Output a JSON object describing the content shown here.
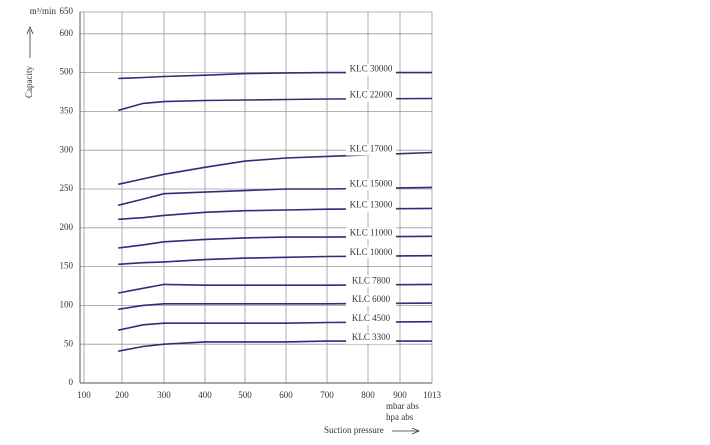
{
  "chart_data": {
    "type": "line",
    "y_unit": "m³/min",
    "ylabel": "Capacity",
    "xlabel": "Suction pressure",
    "x_units": [
      "mbar abs",
      "hpa abs"
    ],
    "x": [
      190,
      250,
      300,
      400,
      500,
      600,
      700,
      1013
    ],
    "series": [
      {
        "name": "KLC 30000",
        "color": "#2b2f7c",
        "values": [
          477,
          481,
          485,
          490,
          496,
          499,
          500,
          500
        ]
      },
      {
        "name": "KLC 22000",
        "color": "#2b2f7c",
        "values": [
          354,
          381,
          388,
          392,
          394,
          396,
          398,
          400
        ]
      },
      {
        "name": "KLC 17000",
        "color": "#2b2f7c",
        "values": [
          256,
          263,
          269,
          278,
          286,
          290,
          292,
          297
        ]
      },
      {
        "name": "KLC 15000",
        "color": "#2b2f7c",
        "values": [
          229,
          237,
          244,
          246,
          248,
          250,
          250,
          252
        ]
      },
      {
        "name": "KLC 13000",
        "color": "#2b2f7c",
        "values": [
          211,
          213,
          216,
          220,
          222,
          223,
          224,
          225
        ]
      },
      {
        "name": "KLC 11000",
        "color": "#2b2f7c",
        "values": [
          174,
          178,
          182,
          185,
          187,
          188,
          188,
          189
        ]
      },
      {
        "name": "KLC 10000",
        "color": "#2b2f7c",
        "values": [
          153,
          155,
          156,
          159,
          161,
          162,
          163,
          164
        ]
      },
      {
        "name": "KLC 7800",
        "color": "#2b2f7c",
        "values": [
          116,
          122,
          127,
          126,
          126,
          126,
          126,
          127
        ]
      },
      {
        "name": "KLC 6000",
        "color": "#2b2f7c",
        "values": [
          95,
          100,
          102,
          102,
          102,
          102,
          102,
          103
        ]
      },
      {
        "name": "KLC 4500",
        "color": "#2b2f7c",
        "values": [
          68,
          75,
          77,
          77,
          77,
          77,
          78,
          79
        ]
      },
      {
        "name": "KLC 3300",
        "color": "#2b2f7c",
        "values": [
          41,
          47,
          50,
          53,
          53,
          53,
          54,
          54
        ]
      }
    ],
    "xlim": [
      100,
      1013
    ],
    "xticks": [
      100,
      200,
      300,
      400,
      500,
      600,
      700,
      800,
      900,
      1013
    ],
    "ylim": [
      0,
      650
    ],
    "yticks": [
      0,
      50,
      100,
      150,
      200,
      250,
      300,
      350,
      500,
      600,
      650
    ],
    "grid": true
  }
}
